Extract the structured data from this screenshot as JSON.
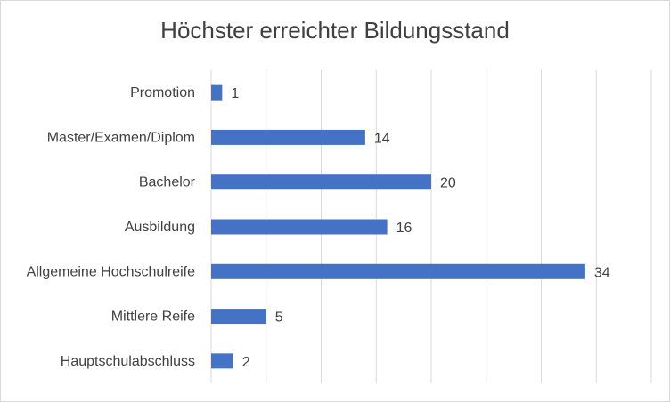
{
  "chart_data": {
    "type": "bar",
    "orientation": "horizontal",
    "title": "Höchster erreichter Bildungsstand",
    "categories": [
      "Promotion",
      "Master/Examen/Diplom",
      "Bachelor",
      "Ausbildung",
      "Allgemeine Hochschulreife",
      "Mittlere Reife",
      "Hauptschulabschluss"
    ],
    "values": [
      1,
      14,
      20,
      16,
      34,
      5,
      2
    ],
    "data_labels": [
      "1",
      "14",
      "20",
      "16",
      "34",
      "5",
      "2"
    ],
    "xlim": [
      0,
      40
    ],
    "grid": true,
    "legend": "none",
    "colors": {
      "bar": "#4472c4",
      "grid": "#d9d9d9",
      "text": "#404040"
    }
  }
}
